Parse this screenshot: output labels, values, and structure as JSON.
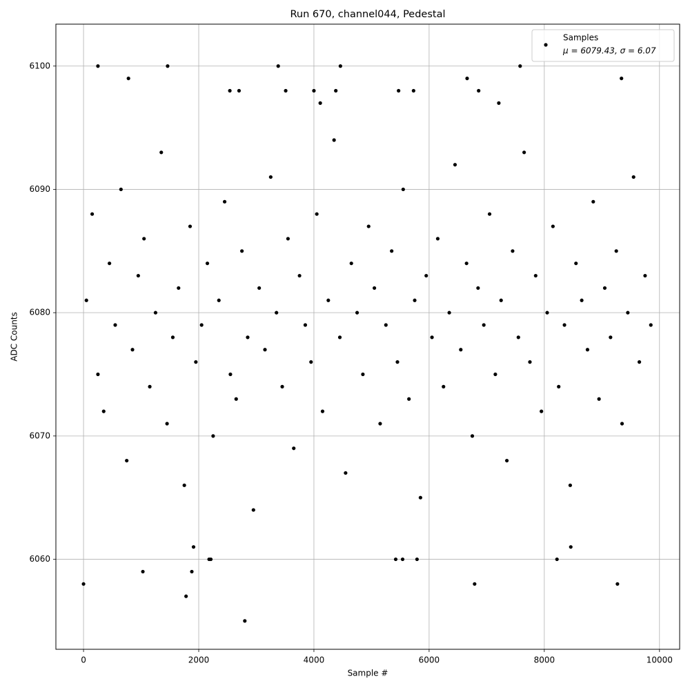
{
  "chart_data": {
    "type": "scatter",
    "title": "Run 670, channel044, Pedestal",
    "xlabel": "Sample #",
    "ylabel": "ADC Counts",
    "xlim": [
      -480,
      10350
    ],
    "ylim": [
      6052.7,
      6103.4
    ],
    "xticks": [
      0,
      2000,
      4000,
      6000,
      8000,
      10000
    ],
    "yticks": [
      6060,
      6070,
      6080,
      6090,
      6100
    ],
    "grid": true,
    "legend": "upper right",
    "series": [
      {
        "name": "Samples",
        "stats": "μ = 6079.43, σ = 6.07",
        "color": "#000000",
        "x": [
          50,
          150,
          250,
          350,
          450,
          550,
          650,
          750,
          850,
          950,
          1050,
          1150,
          1250,
          1350,
          1450,
          1550,
          1650,
          1750,
          1850,
          1950,
          2050,
          2150,
          2250,
          2350,
          2450,
          2550,
          2650,
          2750,
          2850,
          2950,
          3050,
          3150,
          3250,
          3350,
          3450,
          3550,
          3650,
          3750,
          3850,
          3950,
          4050,
          4150,
          4250,
          4350,
          4450,
          4550,
          4650,
          4750,
          4850,
          4950,
          5050,
          5150,
          5250,
          5350,
          5450,
          5550,
          5650,
          5750,
          5850,
          5950,
          6050,
          6150,
          6250,
          6350,
          6450,
          6550,
          6650,
          6750,
          6850,
          6950,
          7050,
          7150,
          7250,
          7350,
          7450,
          7550,
          7650,
          7750,
          7850,
          7950,
          8050,
          8150,
          8250,
          8350,
          8450,
          8550,
          8650,
          8750,
          8850,
          8950,
          9050,
          9150,
          9250,
          9350,
          9450,
          9550,
          9650,
          9750,
          9850,
          0,
          250,
          1460,
          3380,
          4460,
          7580,
          1780,
          2800,
          6790,
          9270,
          1030,
          1880,
          8220,
          5420,
          5540,
          5790,
          2180,
          2210,
          780,
          6660,
          9340,
          4000,
          4380,
          2540,
          2700,
          3510,
          5470,
          5730,
          6860,
          7210,
          4110,
          1910,
          8460
        ],
        "values": [
          6081,
          6088,
          6075,
          6072,
          6084,
          6079,
          6090,
          6068,
          6077,
          6083,
          6086,
          6074,
          6080,
          6093,
          6071,
          6078,
          6082,
          6066,
          6087,
          6076,
          6079,
          6084,
          6070,
          6081,
          6089,
          6075,
          6073,
          6085,
          6078,
          6064,
          6082,
          6077,
          6091,
          6080,
          6074,
          6086,
          6069,
          6083,
          6079,
          6076,
          6088,
          6072,
          6081,
          6094,
          6078,
          6067,
          6084,
          6080,
          6075,
          6087,
          6082,
          6071,
          6079,
          6085,
          6076,
          6090,
          6073,
          6081,
          6065,
          6083,
          6078,
          6086,
          6074,
          6080,
          6092,
          6077,
          6084,
          6070,
          6082,
          6079,
          6088,
          6075,
          6081,
          6068,
          6085,
          6078,
          6093,
          6076,
          6083,
          6072,
          6080,
          6087,
          6074,
          6079,
          6066,
          6084,
          6081,
          6077,
          6089,
          6073,
          6082,
          6078,
          6085,
          6071,
          6080,
          6091,
          6076,
          6083,
          6079,
          6058,
          6100,
          6100,
          6100,
          6100,
          6100,
          6057,
          6055,
          6058,
          6058,
          6059,
          6059,
          6060,
          6060,
          6060,
          6060,
          6060,
          6060,
          6099,
          6099,
          6099,
          6098,
          6098,
          6098,
          6098,
          6098,
          6098,
          6098,
          6098,
          6097,
          6097,
          6061,
          6061
        ]
      }
    ]
  }
}
